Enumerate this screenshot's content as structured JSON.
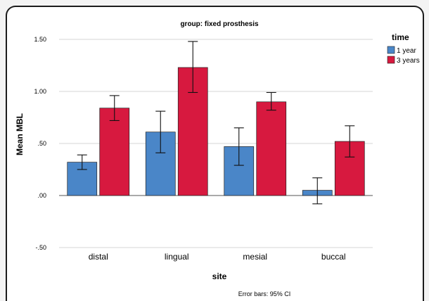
{
  "chart_data": {
    "type": "bar",
    "title": "group: fixed prosthesis",
    "xlabel": "site",
    "ylabel": "Mean MBL",
    "categories": [
      "distal",
      "lingual",
      "mesial",
      "buccal"
    ],
    "ylim": [
      -0.5,
      1.6
    ],
    "yticks": [
      -0.5,
      0.0,
      0.5,
      1.0,
      1.5
    ],
    "yticklabels": [
      "-.50",
      ".00",
      ".50",
      "1.00",
      "1.50"
    ],
    "grid": true,
    "legend": {
      "title": "time",
      "placement": "right"
    },
    "series": [
      {
        "name": "1 year",
        "color": "#4a86c8",
        "values": [
          0.32,
          0.61,
          0.47,
          0.05
        ],
        "ci_low": [
          0.25,
          0.41,
          0.29,
          -0.08
        ],
        "ci_high": [
          0.39,
          0.81,
          0.65,
          0.17
        ]
      },
      {
        "name": "3 years",
        "color": "#d7193f",
        "values": [
          0.84,
          1.23,
          0.9,
          0.52
        ],
        "ci_low": [
          0.72,
          0.99,
          0.82,
          0.37
        ],
        "ci_high": [
          0.96,
          1.48,
          0.99,
          0.67
        ]
      }
    ],
    "footnote": "Error bars: 95% CI"
  }
}
